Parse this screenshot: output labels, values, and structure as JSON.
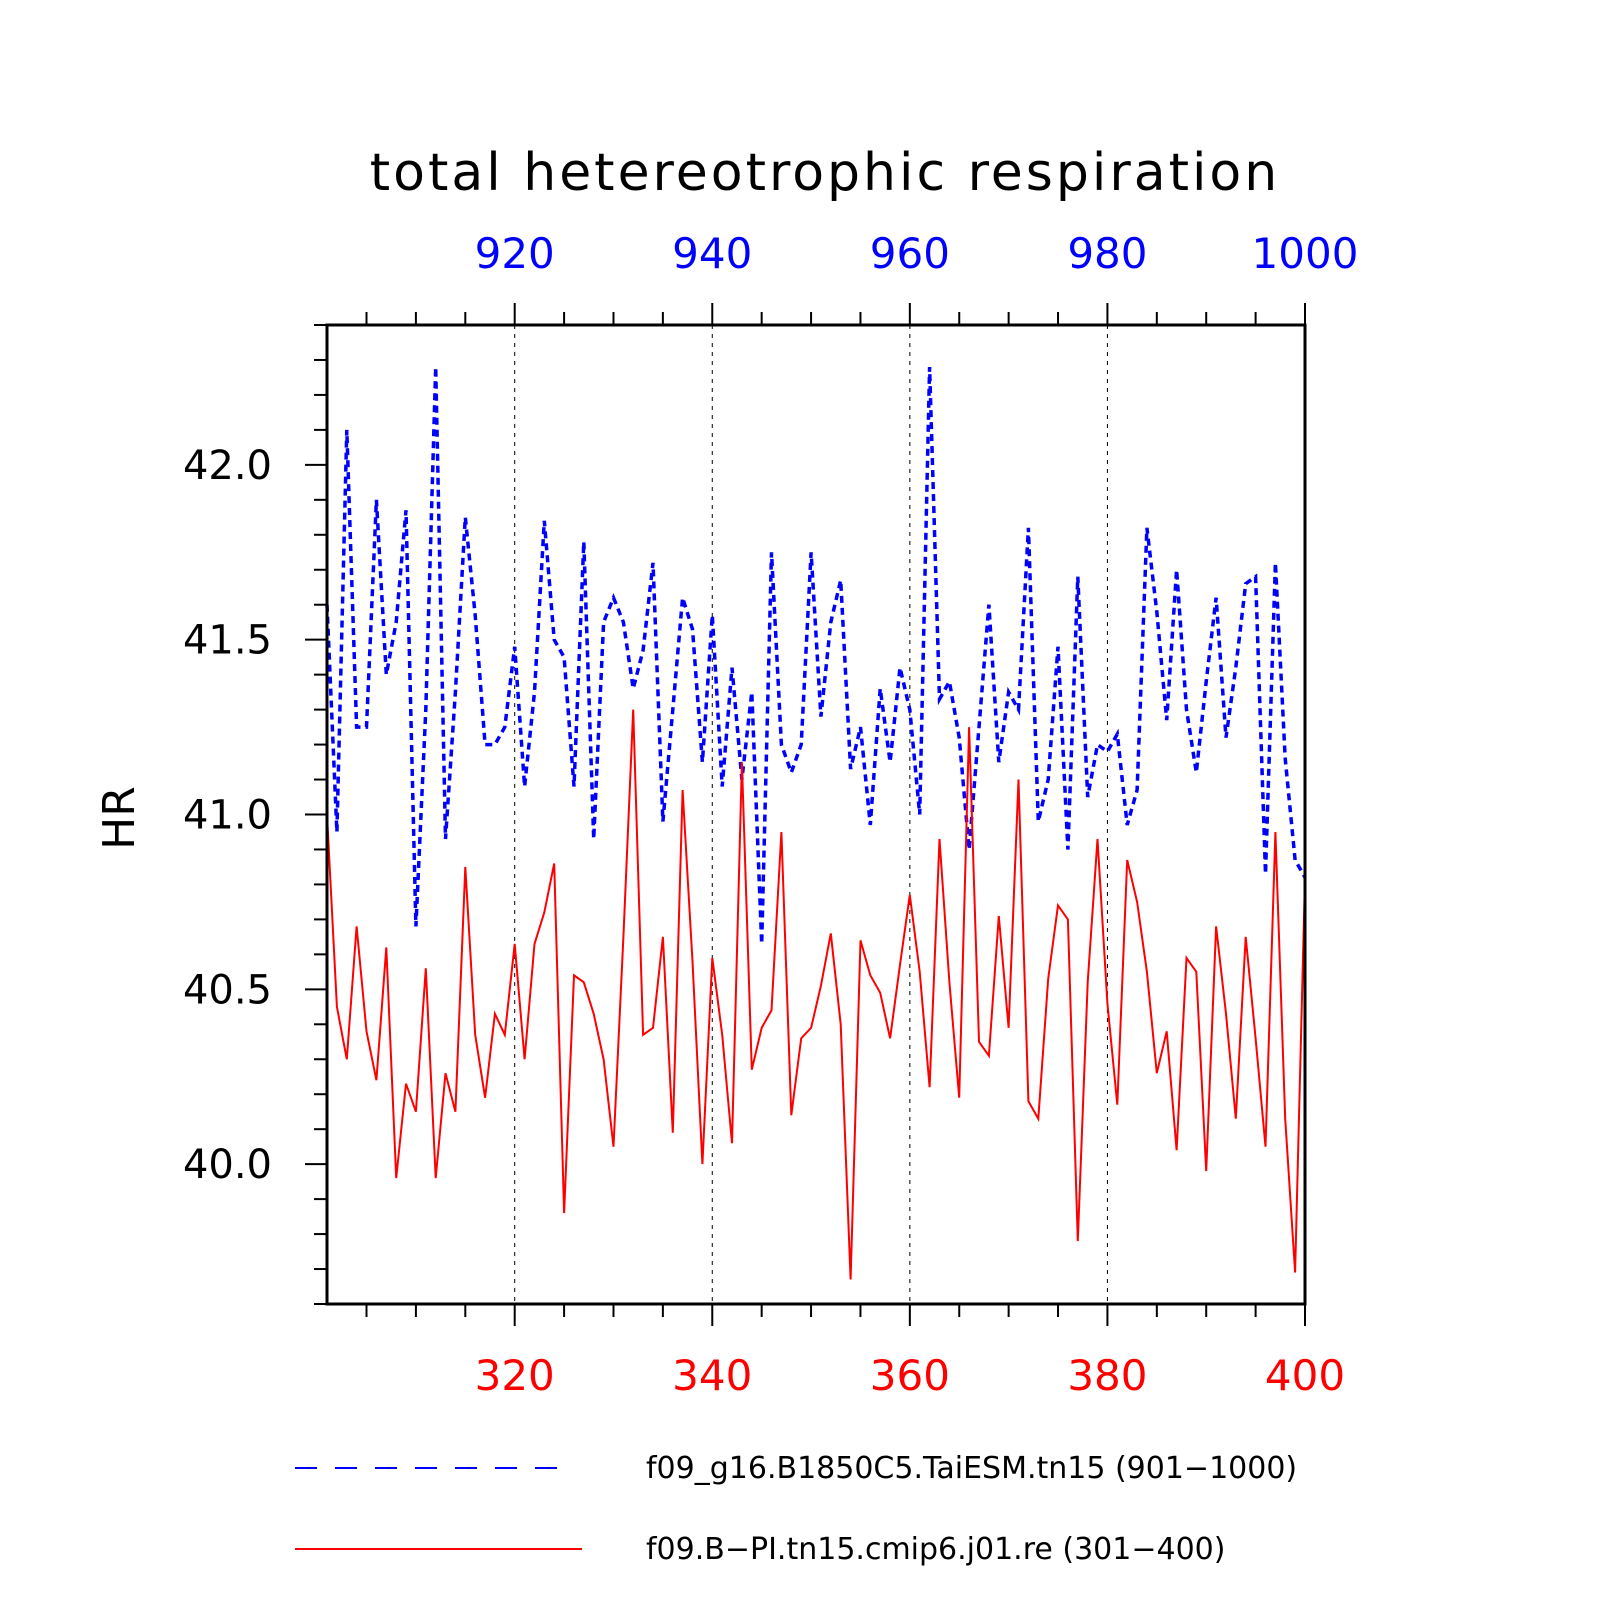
{
  "chart_data": {
    "type": "line",
    "title": "total hetereotrophic respiration",
    "ylabel": "HR",
    "ylim": [
      39.6,
      42.4
    ],
    "yticks": [
      40.0,
      40.5,
      41.0,
      41.5,
      42.0
    ],
    "ytick_labels": [
      "40.0",
      "40.5",
      "41.0",
      "41.5",
      "42.0"
    ],
    "grid": "vertical dashed lines at major x ticks",
    "legend_placement": "below chart",
    "x_top": {
      "color": "#0000ff",
      "range": [
        901,
        1000
      ],
      "ticks": [
        920,
        940,
        960,
        980,
        1000
      ],
      "tick_labels": [
        "920",
        "940",
        "960",
        "980",
        "1000"
      ]
    },
    "x_bottom": {
      "color": "#ff0000",
      "range": [
        301,
        400
      ],
      "ticks": [
        320,
        340,
        360,
        380,
        400
      ],
      "tick_labels": [
        "320",
        "340",
        "360",
        "380",
        "400"
      ]
    },
    "series": [
      {
        "name": "f09_g16.B1850C5.TaiESM.tn15 (901−1000)",
        "axis": "top",
        "color": "#0000ff",
        "style": "dashed",
        "x_start": 901,
        "values": [
          41.6,
          40.95,
          42.1,
          41.25,
          41.25,
          41.9,
          41.4,
          41.55,
          41.87,
          40.68,
          41.3,
          42.28,
          40.93,
          41.35,
          41.85,
          41.57,
          41.2,
          41.2,
          41.25,
          41.48,
          41.08,
          41.35,
          41.84,
          41.5,
          41.45,
          41.08,
          41.78,
          40.93,
          41.55,
          41.62,
          41.55,
          41.36,
          41.47,
          41.72,
          40.98,
          41.3,
          41.62,
          41.53,
          41.15,
          41.57,
          41.08,
          41.42,
          41.1,
          41.35,
          40.63,
          41.75,
          41.2,
          41.12,
          41.2,
          41.75,
          41.28,
          41.55,
          41.67,
          41.13,
          41.25,
          40.97,
          41.36,
          41.15,
          41.42,
          41.3,
          41.0,
          42.28,
          41.33,
          41.38,
          41.22,
          40.9,
          41.25,
          41.6,
          41.15,
          41.35,
          41.3,
          41.82,
          40.98,
          41.1,
          41.48,
          40.9,
          41.68,
          41.05,
          41.2,
          41.18,
          41.23,
          40.97,
          41.07,
          41.82,
          41.58,
          41.27,
          41.7,
          41.3,
          41.12,
          41.38,
          41.62,
          41.22,
          41.42,
          41.66,
          41.68,
          40.83,
          41.72,
          41.16,
          40.87,
          40.82
        ]
      },
      {
        "name": "f09.B−PI.tn15.cmip6.j01.re (301−400)",
        "axis": "bottom",
        "color": "#ff0000",
        "style": "solid",
        "x_start": 301,
        "values": [
          41.0,
          40.45,
          40.3,
          40.68,
          40.38,
          40.24,
          40.62,
          39.96,
          40.23,
          40.15,
          40.56,
          39.96,
          40.26,
          40.15,
          40.85,
          40.37,
          40.19,
          40.43,
          40.37,
          40.63,
          40.3,
          40.63,
          40.72,
          40.86,
          39.86,
          40.54,
          40.52,
          40.43,
          40.3,
          40.05,
          40.65,
          41.3,
          40.37,
          40.39,
          40.65,
          40.09,
          41.07,
          40.58,
          40.0,
          40.59,
          40.37,
          40.06,
          41.15,
          40.27,
          40.39,
          40.44,
          40.95,
          40.14,
          40.36,
          40.39,
          40.51,
          40.66,
          40.4,
          39.67,
          40.64,
          40.54,
          40.49,
          40.36,
          40.57,
          40.77,
          40.55,
          40.22,
          40.93,
          40.52,
          40.19,
          41.25,
          40.35,
          40.31,
          40.71,
          40.39,
          41.1,
          40.18,
          40.13,
          40.53,
          40.74,
          40.7,
          39.78,
          40.52,
          40.93,
          40.46,
          40.17,
          40.87,
          40.75,
          40.55,
          40.26,
          40.38,
          40.04,
          40.59,
          40.55,
          39.98,
          40.68,
          40.43,
          40.13,
          40.65,
          40.36,
          40.05,
          40.95,
          40.13,
          39.69,
          40.82
        ]
      }
    ]
  }
}
